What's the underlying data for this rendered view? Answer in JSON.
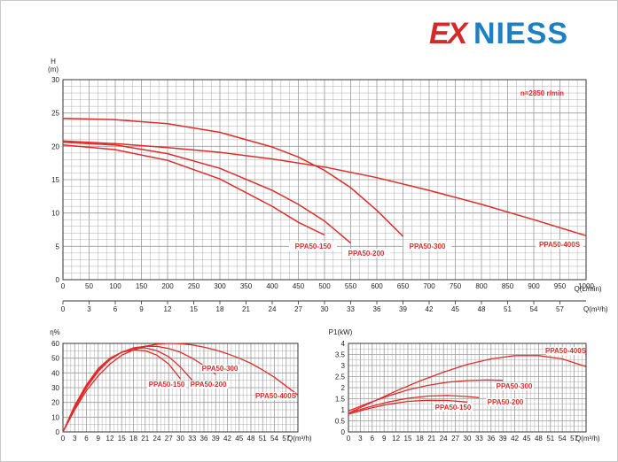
{
  "brand": {
    "part1": "EX",
    "part2": "NIESS"
  },
  "colors": {
    "curve": "#e02b2b",
    "brand_red": "#d42a2a",
    "brand_blue": "#1e7fc2",
    "grid": "#9a9a9a"
  },
  "chart_data": [
    {
      "type": "line",
      "ylabel_line1": "H",
      "ylabel_line2": "(m)",
      "xlabel": "Q(L/min)",
      "xlabel2": "Q(m³/h)",
      "annotation": "n=2850 r/min",
      "ylim": [
        0,
        30
      ],
      "xlim": [
        0,
        1000
      ],
      "yticks": [
        "0",
        "5",
        "10",
        "15",
        "20",
        "25",
        "30"
      ],
      "xticks": [
        "0",
        "50",
        "100",
        "150",
        "200",
        "250",
        "300",
        "350",
        "400",
        "450",
        "500",
        "550",
        "600",
        "650",
        "700",
        "750",
        "800",
        "850",
        "900",
        "950",
        "1000"
      ],
      "xticks2": [
        "0",
        "3",
        "6",
        "9",
        "12",
        "15",
        "18",
        "21",
        "24",
        "27",
        "30",
        "33",
        "36",
        "39",
        "42",
        "45",
        "48",
        "51",
        "54",
        "57"
      ],
      "series": [
        {
          "name": "PPA50-150",
          "x": [
            0,
            100,
            200,
            300,
            400,
            450,
            500
          ],
          "y": [
            20.2,
            19.5,
            17.9,
            15.1,
            11,
            8.6,
            6.7
          ]
        },
        {
          "name": "PPA50-200",
          "x": [
            0,
            100,
            200,
            300,
            400,
            450,
            500,
            550
          ],
          "y": [
            20.6,
            20.2,
            18.9,
            16.7,
            13.4,
            11.3,
            8.8,
            5.5
          ]
        },
        {
          "name": "PPA50-300",
          "x": [
            0,
            100,
            200,
            300,
            400,
            450,
            500,
            550,
            600,
            650
          ],
          "y": [
            24.2,
            24,
            23.4,
            22.1,
            19.9,
            18.4,
            16.4,
            13.8,
            10.4,
            6.5
          ]
        },
        {
          "name": "PPA50-400S",
          "x": [
            0,
            100,
            200,
            300,
            400,
            500,
            600,
            700,
            800,
            900,
            1000
          ],
          "y": [
            20.8,
            20.4,
            19.8,
            19.1,
            18.1,
            16.9,
            15.3,
            13.4,
            11.3,
            9,
            6.6
          ]
        }
      ]
    },
    {
      "type": "line",
      "ylabel": "η%",
      "xlabel": "Q(m³/h)",
      "ylim": [
        0,
        60
      ],
      "xlim": [
        0,
        60
      ],
      "yticks": [
        "0",
        "10",
        "20",
        "30",
        "40",
        "50",
        "60"
      ],
      "xticks": [
        "0",
        "3",
        "6",
        "9",
        "12",
        "15",
        "18",
        "21",
        "24",
        "27",
        "30",
        "33",
        "36",
        "39",
        "42",
        "45",
        "48",
        "51",
        "54",
        "57"
      ],
      "series": [
        {
          "name": "PPA50-150",
          "x": [
            0,
            3,
            6,
            9,
            12,
            15,
            18,
            21,
            24,
            27,
            30
          ],
          "y": [
            0,
            18,
            32,
            43,
            50,
            54,
            55.5,
            55,
            52,
            46,
            36
          ]
        },
        {
          "name": "PPA50-200",
          "x": [
            0,
            3,
            6,
            9,
            12,
            15,
            18,
            21,
            24,
            27,
            30,
            33
          ],
          "y": [
            0,
            17,
            31,
            42,
            50,
            54,
            56.5,
            57,
            55,
            51,
            44,
            35
          ]
        },
        {
          "name": "PPA50-300",
          "x": [
            0,
            3,
            6,
            9,
            12,
            15,
            18,
            21,
            24,
            27,
            30,
            33,
            36,
            39
          ],
          "y": [
            0,
            16,
            30,
            41,
            49,
            54,
            57,
            58,
            58,
            56.5,
            54,
            50,
            45,
            39
          ]
        },
        {
          "name": "PPA50-400S",
          "x": [
            0,
            3,
            6,
            9,
            12,
            15,
            18,
            21,
            24,
            27,
            30,
            33,
            36,
            39,
            42,
            45,
            48,
            51,
            54,
            57,
            60
          ],
          "y": [
            0,
            15,
            28,
            38,
            46,
            52,
            55.5,
            58,
            59.5,
            60,
            59.8,
            59,
            57.5,
            55.5,
            53,
            50,
            46.5,
            42,
            37,
            31,
            25
          ]
        }
      ]
    },
    {
      "type": "line",
      "ylabel": "P1(kW)",
      "xlabel": "Q(m³/h)",
      "ylim": [
        0,
        4
      ],
      "xlim": [
        0,
        60
      ],
      "yticks": [
        "0",
        "0.5",
        "1",
        "1.5",
        "2",
        "2.5",
        "3",
        "3.5",
        "4"
      ],
      "xticks": [
        "0",
        "3",
        "6",
        "9",
        "12",
        "15",
        "18",
        "21",
        "24",
        "27",
        "30",
        "33",
        "36",
        "39",
        "42",
        "45",
        "48",
        "51",
        "54",
        "57"
      ],
      "series": [
        {
          "name": "PPA50-150",
          "x": [
            0,
            5,
            10,
            15,
            20,
            25,
            30
          ],
          "y": [
            0.8,
            1.05,
            1.25,
            1.38,
            1.43,
            1.42,
            1.35
          ]
        },
        {
          "name": "PPA50-200",
          "x": [
            0,
            5,
            10,
            15,
            20,
            25,
            30,
            33
          ],
          "y": [
            0.85,
            1.12,
            1.35,
            1.52,
            1.62,
            1.65,
            1.6,
            1.55
          ]
        },
        {
          "name": "PPA50-300",
          "x": [
            0,
            5,
            10,
            15,
            20,
            25,
            30,
            35,
            39
          ],
          "y": [
            0.95,
            1.3,
            1.62,
            1.9,
            2.1,
            2.25,
            2.32,
            2.35,
            2.33
          ]
        },
        {
          "name": "PPA50-400S",
          "x": [
            0,
            6,
            12,
            18,
            24,
            30,
            36,
            42,
            48,
            54,
            60
          ],
          "y": [
            0.85,
            1.35,
            1.85,
            2.3,
            2.7,
            3.05,
            3.3,
            3.45,
            3.45,
            3.3,
            2.95
          ]
        }
      ]
    }
  ]
}
